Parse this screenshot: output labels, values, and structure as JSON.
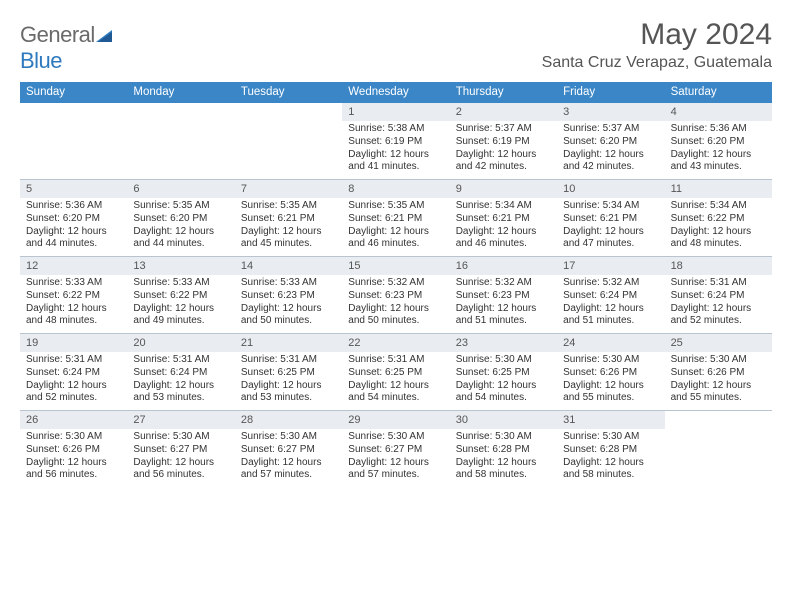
{
  "logo": {
    "text_part1": "General",
    "text_part2": "Blue"
  },
  "title": "May 2024",
  "location": "Santa Cruz Verapaz, Guatemala",
  "colors": {
    "header_bg": "#3b86c6",
    "daynum_bg": "#e9edf1",
    "rule": "#b9c4cf",
    "text": "#333333",
    "title_text": "#555555"
  },
  "day_names": [
    "Sunday",
    "Monday",
    "Tuesday",
    "Wednesday",
    "Thursday",
    "Friday",
    "Saturday"
  ],
  "weeks": [
    [
      {
        "empty": true
      },
      {
        "empty": true
      },
      {
        "empty": true
      },
      {
        "day": "1",
        "sunrise": "Sunrise: 5:38 AM",
        "sunset": "Sunset: 6:19 PM",
        "daylight": "Daylight: 12 hours and 41 minutes."
      },
      {
        "day": "2",
        "sunrise": "Sunrise: 5:37 AM",
        "sunset": "Sunset: 6:19 PM",
        "daylight": "Daylight: 12 hours and 42 minutes."
      },
      {
        "day": "3",
        "sunrise": "Sunrise: 5:37 AM",
        "sunset": "Sunset: 6:20 PM",
        "daylight": "Daylight: 12 hours and 42 minutes."
      },
      {
        "day": "4",
        "sunrise": "Sunrise: 5:36 AM",
        "sunset": "Sunset: 6:20 PM",
        "daylight": "Daylight: 12 hours and 43 minutes."
      }
    ],
    [
      {
        "day": "5",
        "sunrise": "Sunrise: 5:36 AM",
        "sunset": "Sunset: 6:20 PM",
        "daylight": "Daylight: 12 hours and 44 minutes."
      },
      {
        "day": "6",
        "sunrise": "Sunrise: 5:35 AM",
        "sunset": "Sunset: 6:20 PM",
        "daylight": "Daylight: 12 hours and 44 minutes."
      },
      {
        "day": "7",
        "sunrise": "Sunrise: 5:35 AM",
        "sunset": "Sunset: 6:21 PM",
        "daylight": "Daylight: 12 hours and 45 minutes."
      },
      {
        "day": "8",
        "sunrise": "Sunrise: 5:35 AM",
        "sunset": "Sunset: 6:21 PM",
        "daylight": "Daylight: 12 hours and 46 minutes."
      },
      {
        "day": "9",
        "sunrise": "Sunrise: 5:34 AM",
        "sunset": "Sunset: 6:21 PM",
        "daylight": "Daylight: 12 hours and 46 minutes."
      },
      {
        "day": "10",
        "sunrise": "Sunrise: 5:34 AM",
        "sunset": "Sunset: 6:21 PM",
        "daylight": "Daylight: 12 hours and 47 minutes."
      },
      {
        "day": "11",
        "sunrise": "Sunrise: 5:34 AM",
        "sunset": "Sunset: 6:22 PM",
        "daylight": "Daylight: 12 hours and 48 minutes."
      }
    ],
    [
      {
        "day": "12",
        "sunrise": "Sunrise: 5:33 AM",
        "sunset": "Sunset: 6:22 PM",
        "daylight": "Daylight: 12 hours and 48 minutes."
      },
      {
        "day": "13",
        "sunrise": "Sunrise: 5:33 AM",
        "sunset": "Sunset: 6:22 PM",
        "daylight": "Daylight: 12 hours and 49 minutes."
      },
      {
        "day": "14",
        "sunrise": "Sunrise: 5:33 AM",
        "sunset": "Sunset: 6:23 PM",
        "daylight": "Daylight: 12 hours and 50 minutes."
      },
      {
        "day": "15",
        "sunrise": "Sunrise: 5:32 AM",
        "sunset": "Sunset: 6:23 PM",
        "daylight": "Daylight: 12 hours and 50 minutes."
      },
      {
        "day": "16",
        "sunrise": "Sunrise: 5:32 AM",
        "sunset": "Sunset: 6:23 PM",
        "daylight": "Daylight: 12 hours and 51 minutes."
      },
      {
        "day": "17",
        "sunrise": "Sunrise: 5:32 AM",
        "sunset": "Sunset: 6:24 PM",
        "daylight": "Daylight: 12 hours and 51 minutes."
      },
      {
        "day": "18",
        "sunrise": "Sunrise: 5:31 AM",
        "sunset": "Sunset: 6:24 PM",
        "daylight": "Daylight: 12 hours and 52 minutes."
      }
    ],
    [
      {
        "day": "19",
        "sunrise": "Sunrise: 5:31 AM",
        "sunset": "Sunset: 6:24 PM",
        "daylight": "Daylight: 12 hours and 52 minutes."
      },
      {
        "day": "20",
        "sunrise": "Sunrise: 5:31 AM",
        "sunset": "Sunset: 6:24 PM",
        "daylight": "Daylight: 12 hours and 53 minutes."
      },
      {
        "day": "21",
        "sunrise": "Sunrise: 5:31 AM",
        "sunset": "Sunset: 6:25 PM",
        "daylight": "Daylight: 12 hours and 53 minutes."
      },
      {
        "day": "22",
        "sunrise": "Sunrise: 5:31 AM",
        "sunset": "Sunset: 6:25 PM",
        "daylight": "Daylight: 12 hours and 54 minutes."
      },
      {
        "day": "23",
        "sunrise": "Sunrise: 5:30 AM",
        "sunset": "Sunset: 6:25 PM",
        "daylight": "Daylight: 12 hours and 54 minutes."
      },
      {
        "day": "24",
        "sunrise": "Sunrise: 5:30 AM",
        "sunset": "Sunset: 6:26 PM",
        "daylight": "Daylight: 12 hours and 55 minutes."
      },
      {
        "day": "25",
        "sunrise": "Sunrise: 5:30 AM",
        "sunset": "Sunset: 6:26 PM",
        "daylight": "Daylight: 12 hours and 55 minutes."
      }
    ],
    [
      {
        "day": "26",
        "sunrise": "Sunrise: 5:30 AM",
        "sunset": "Sunset: 6:26 PM",
        "daylight": "Daylight: 12 hours and 56 minutes."
      },
      {
        "day": "27",
        "sunrise": "Sunrise: 5:30 AM",
        "sunset": "Sunset: 6:27 PM",
        "daylight": "Daylight: 12 hours and 56 minutes."
      },
      {
        "day": "28",
        "sunrise": "Sunrise: 5:30 AM",
        "sunset": "Sunset: 6:27 PM",
        "daylight": "Daylight: 12 hours and 57 minutes."
      },
      {
        "day": "29",
        "sunrise": "Sunrise: 5:30 AM",
        "sunset": "Sunset: 6:27 PM",
        "daylight": "Daylight: 12 hours and 57 minutes."
      },
      {
        "day": "30",
        "sunrise": "Sunrise: 5:30 AM",
        "sunset": "Sunset: 6:28 PM",
        "daylight": "Daylight: 12 hours and 58 minutes."
      },
      {
        "day": "31",
        "sunrise": "Sunrise: 5:30 AM",
        "sunset": "Sunset: 6:28 PM",
        "daylight": "Daylight: 12 hours and 58 minutes."
      },
      {
        "empty": true
      }
    ]
  ]
}
